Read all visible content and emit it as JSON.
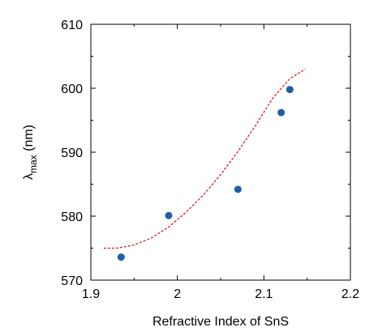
{
  "chart_data": {
    "type": "scatter",
    "xlabel": "Refractive Index of SnS",
    "ylabel": {
      "main": "λ",
      "sub": "max",
      "unit": " (nm)"
    },
    "xlim": [
      1.9,
      2.2
    ],
    "ylim": [
      570,
      610
    ],
    "xticks": [
      1.9,
      2.0,
      2.1,
      2.2
    ],
    "xtick_labels": [
      "1.9",
      "2",
      "2.1",
      "2.2"
    ],
    "yticks": [
      570,
      580,
      590,
      600,
      610
    ],
    "ytick_labels": [
      "570",
      "580",
      "590",
      "600",
      "610"
    ],
    "grid": false,
    "series": [
      {
        "type": "scatter",
        "color": "#1f5fa8",
        "x": [
          1.935,
          1.99,
          2.07,
          2.12,
          2.13
        ],
        "y": [
          573.6,
          580.1,
          584.2,
          596.2,
          599.8
        ]
      },
      {
        "type": "line",
        "style": "dashed",
        "color": "#d62020",
        "x": [
          1.915,
          1.93,
          1.95,
          1.97,
          1.99,
          2.01,
          2.03,
          2.05,
          2.07,
          2.09,
          2.11,
          2.13,
          2.148
        ],
        "y": [
          575.0,
          575.0,
          575.5,
          576.6,
          578.3,
          580.6,
          583.3,
          586.5,
          590.1,
          594.1,
          598.4,
          601.5,
          603.0
        ]
      }
    ]
  }
}
